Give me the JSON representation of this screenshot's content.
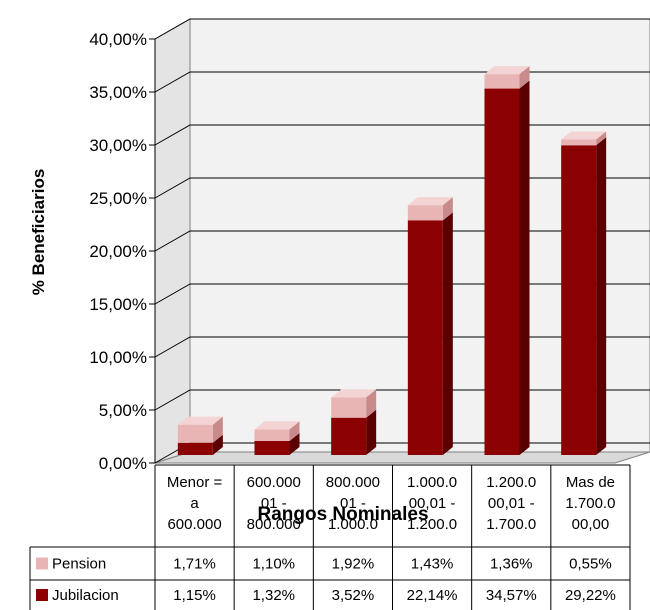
{
  "chart_data": {
    "type": "bar",
    "stacked": true,
    "three_d": true,
    "title": "",
    "xlabel": "Rangos Nominales",
    "ylabel": "% Beneficiarios",
    "ylim": [
      0,
      40
    ],
    "ytick_step": 5,
    "y_tick_labels": [
      "0,00%",
      "5,00%",
      "10,00%",
      "15,00%",
      "20,00%",
      "25,00%",
      "30,00%",
      "35,00%",
      "40,00%"
    ],
    "grid": true,
    "categories": [
      [
        "Menor =",
        "a",
        "600.000"
      ],
      [
        "600.000",
        "01 -",
        "800.000"
      ],
      [
        "800.000",
        "01 -",
        "1.000.0"
      ],
      [
        "1.000.0",
        "00,01 -",
        "1.200.0"
      ],
      [
        "1.200.0",
        "00,01 -",
        "1.700.0"
      ],
      [
        "Mas de",
        "1.700.0",
        "00,00"
      ]
    ],
    "series": [
      {
        "name": "Pension",
        "values": [
          1.71,
          1.1,
          1.92,
          1.43,
          1.36,
          0.55
        ],
        "labels": [
          "1,71%",
          "1,10%",
          "1,92%",
          "1,43%",
          "1,36%",
          "0,55%"
        ]
      },
      {
        "name": "Jubilacion",
        "values": [
          1.15,
          1.32,
          3.52,
          22.14,
          34.57,
          29.22
        ],
        "labels": [
          "1,15%",
          "1,32%",
          "3,52%",
          "22,14%",
          "34,57%",
          "29,22%"
        ]
      }
    ],
    "colors": {
      "pension_front": "#e8b4b4",
      "pension_side": "#c88a8a",
      "pension_top": "#f3d3d3",
      "jubilacion_front": "#8b0000",
      "jubilacion_side": "#5a0000",
      "jubilacion_top": "#b52a2a",
      "wall": "#f2f2f2",
      "grid": "#000000"
    },
    "legend": "data-table-below"
  }
}
